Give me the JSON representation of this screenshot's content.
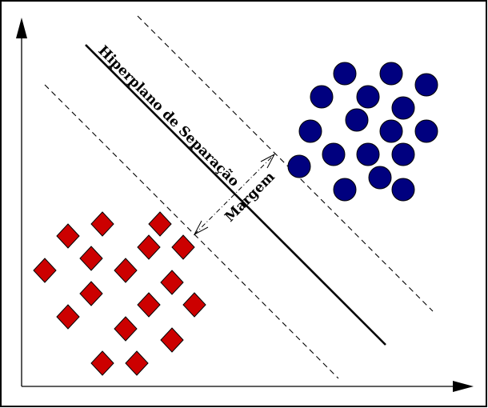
{
  "labels": {
    "hyperplane": "Hiperplano de Separação",
    "margin": "Margem"
  },
  "colors": {
    "circle_fill": "#00007f",
    "diamond_fill": "#cc0000",
    "stroke": "#000000",
    "frame": "#000000",
    "background": "#ffffff"
  }
}
